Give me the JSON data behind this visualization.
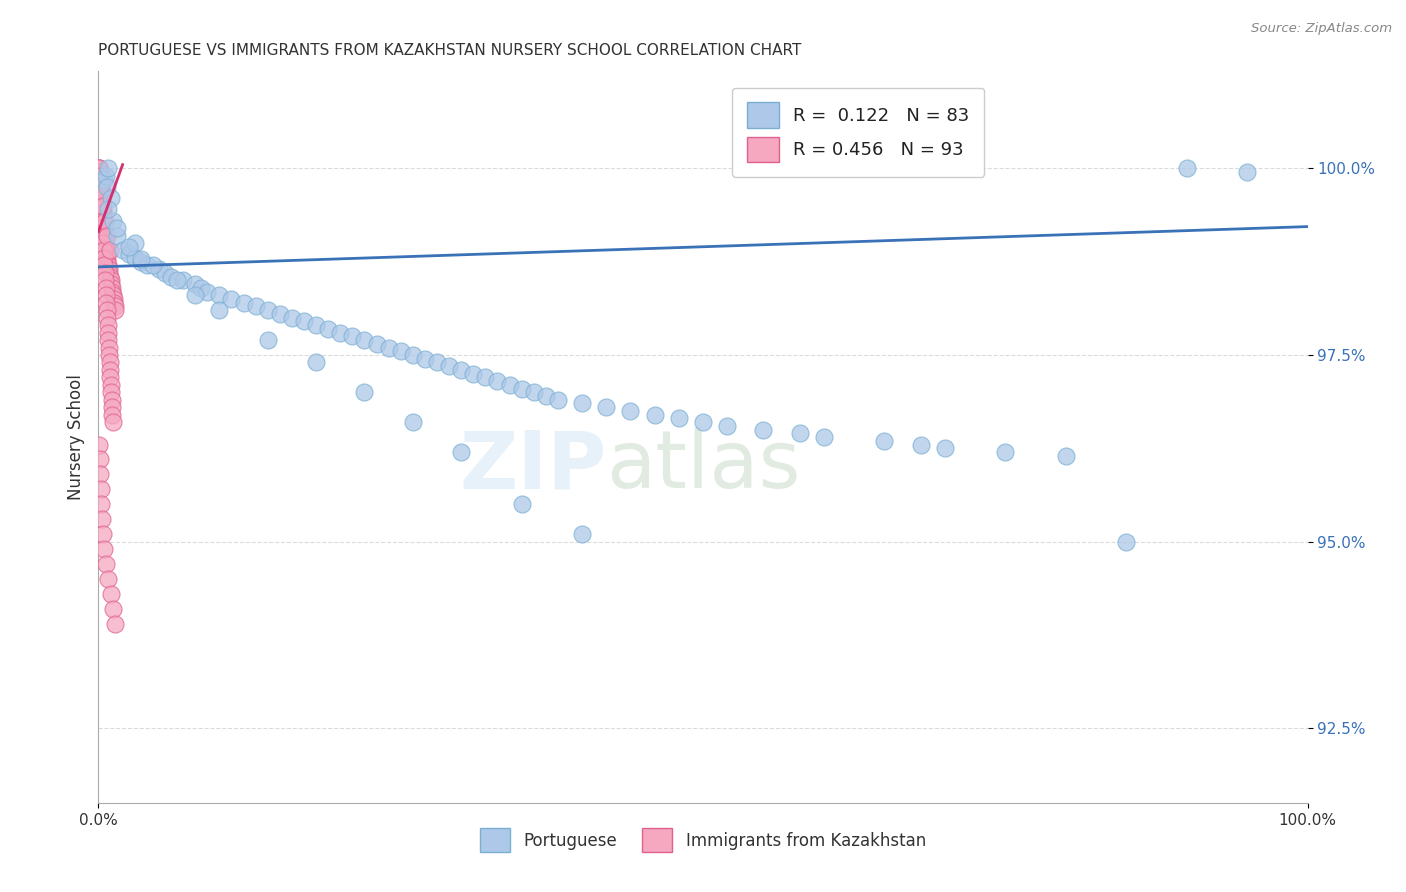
{
  "title": "PORTUGUESE VS IMMIGRANTS FROM KAZAKHSTAN NURSERY SCHOOL CORRELATION CHART",
  "source": "Source: ZipAtlas.com",
  "ylabel": "Nursery School",
  "xlim": [
    0.0,
    100.0
  ],
  "ylim": [
    91.5,
    101.3
  ],
  "yticks": [
    92.5,
    95.0,
    97.5,
    100.0
  ],
  "ytick_labels": [
    "92.5%",
    "95.0%",
    "97.5%",
    "100.0%"
  ],
  "xticks": [
    0.0,
    100.0
  ],
  "xtick_labels": [
    "0.0%",
    "100.0%"
  ],
  "legend_blue_label": "Portuguese",
  "legend_pink_label": "Immigrants from Kazakhstan",
  "blue_color": "#adc8e8",
  "blue_edge_color": "#7aafd4",
  "blue_line_color": "#3a72b8",
  "pink_color": "#f5a8c0",
  "pink_edge_color": "#e06090",
  "pink_line_color": "#d43070",
  "watermark_zip_color": "#dce8f5",
  "watermark_atlas_color": "#c8dcc8",
  "background_color": "#ffffff",
  "grid_color": "#cccccc",
  "blue_trend_x0": 0.0,
  "blue_trend_y0": 98.68,
  "blue_trend_x1": 100.0,
  "blue_trend_y1": 99.22,
  "pink_trend_x0": 0.0,
  "pink_trend_y0": 99.15,
  "pink_trend_x1": 2.0,
  "pink_trend_y1": 100.05,
  "blue_scatter_x": [
    0.5,
    0.6,
    0.7,
    0.8,
    1.0,
    1.2,
    1.5,
    2.0,
    2.5,
    3.0,
    3.5,
    4.0,
    5.0,
    5.5,
    6.0,
    7.0,
    8.0,
    8.5,
    9.0,
    10.0,
    11.0,
    12.0,
    13.0,
    14.0,
    15.0,
    16.0,
    17.0,
    18.0,
    19.0,
    20.0,
    21.0,
    22.0,
    23.0,
    24.0,
    25.0,
    26.0,
    27.0,
    28.0,
    29.0,
    30.0,
    31.0,
    32.0,
    33.0,
    34.0,
    35.0,
    36.0,
    37.0,
    38.0,
    40.0,
    42.0,
    44.0,
    46.0,
    48.0,
    50.0,
    52.0,
    55.0,
    58.0,
    60.0,
    65.0,
    68.0,
    70.0,
    75.0,
    80.0,
    85.0,
    90.0,
    95.0,
    3.0,
    4.5,
    6.5,
    8.0,
    10.0,
    14.0,
    18.0,
    22.0,
    26.0,
    30.0,
    35.0,
    40.0,
    0.8,
    1.5,
    2.5,
    3.5
  ],
  "blue_scatter_y": [
    99.85,
    99.9,
    99.75,
    100.0,
    99.6,
    99.3,
    99.1,
    98.9,
    98.85,
    98.8,
    98.75,
    98.7,
    98.65,
    98.6,
    98.55,
    98.5,
    98.45,
    98.4,
    98.35,
    98.3,
    98.25,
    98.2,
    98.15,
    98.1,
    98.05,
    98.0,
    97.95,
    97.9,
    97.85,
    97.8,
    97.75,
    97.7,
    97.65,
    97.6,
    97.55,
    97.5,
    97.45,
    97.4,
    97.35,
    97.3,
    97.25,
    97.2,
    97.15,
    97.1,
    97.05,
    97.0,
    96.95,
    96.9,
    96.85,
    96.8,
    96.75,
    96.7,
    96.65,
    96.6,
    96.55,
    96.5,
    96.45,
    96.4,
    96.35,
    96.3,
    96.25,
    96.2,
    96.15,
    95.0,
    100.0,
    99.95,
    99.0,
    98.7,
    98.5,
    98.3,
    98.1,
    97.7,
    97.4,
    97.0,
    96.6,
    96.2,
    95.5,
    95.1,
    99.45,
    99.2,
    98.95,
    98.78
  ],
  "pink_scatter_x": [
    0.05,
    0.08,
    0.1,
    0.12,
    0.15,
    0.18,
    0.2,
    0.22,
    0.25,
    0.28,
    0.3,
    0.32,
    0.35,
    0.38,
    0.4,
    0.42,
    0.45,
    0.48,
    0.5,
    0.52,
    0.55,
    0.58,
    0.6,
    0.62,
    0.65,
    0.7,
    0.75,
    0.8,
    0.85,
    0.9,
    0.95,
    1.0,
    1.05,
    1.1,
    1.15,
    1.2,
    1.25,
    1.3,
    1.35,
    1.4,
    0.07,
    0.1,
    0.13,
    0.16,
    0.19,
    0.23,
    0.26,
    0.29,
    0.33,
    0.36,
    0.39,
    0.43,
    0.46,
    0.49,
    0.53,
    0.56,
    0.59,
    0.63,
    0.66,
    0.69,
    0.73,
    0.76,
    0.79,
    0.83,
    0.86,
    0.89,
    0.93,
    0.96,
    0.99,
    1.03,
    1.06,
    1.09,
    1.13,
    1.16,
    1.19,
    0.15,
    0.35,
    0.55,
    0.75,
    0.95,
    0.05,
    0.1,
    0.15,
    0.2,
    0.25,
    0.3,
    0.35,
    0.45,
    0.6,
    0.8,
    1.0,
    1.2,
    1.4
  ],
  "pink_scatter_y": [
    100.0,
    100.0,
    99.95,
    99.9,
    99.85,
    99.8,
    99.75,
    99.7,
    99.65,
    99.6,
    99.55,
    99.5,
    99.45,
    99.4,
    99.35,
    99.3,
    99.25,
    99.2,
    99.15,
    99.1,
    99.05,
    99.0,
    98.95,
    98.9,
    98.85,
    98.8,
    98.75,
    98.7,
    98.65,
    98.6,
    98.55,
    98.5,
    98.45,
    98.4,
    98.35,
    98.3,
    98.25,
    98.2,
    98.15,
    98.1,
    100.0,
    99.9,
    99.8,
    99.7,
    99.6,
    99.5,
    99.4,
    99.3,
    99.2,
    99.1,
    99.0,
    98.9,
    98.8,
    98.7,
    98.6,
    98.5,
    98.4,
    98.3,
    98.2,
    98.1,
    98.0,
    97.9,
    97.8,
    97.7,
    97.6,
    97.5,
    97.4,
    97.3,
    97.2,
    97.1,
    97.0,
    96.9,
    96.8,
    96.7,
    96.6,
    99.7,
    99.5,
    99.3,
    99.1,
    98.9,
    96.3,
    96.1,
    95.9,
    95.7,
    95.5,
    95.3,
    95.1,
    94.9,
    94.7,
    94.5,
    94.3,
    94.1,
    93.9
  ]
}
